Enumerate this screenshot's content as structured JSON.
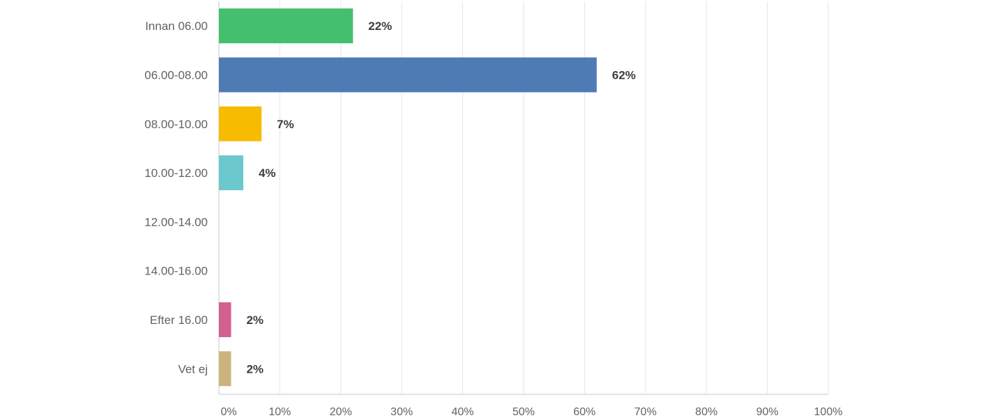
{
  "chart_data": {
    "type": "bar",
    "orientation": "horizontal",
    "categories": [
      "Innan 06.00",
      "06.00-08.00",
      "08.00-10.00",
      "10.00-12.00",
      "12.00-14.00",
      "14.00-16.00",
      "Efter 16.00",
      "Vet ej"
    ],
    "values": [
      22,
      62,
      7,
      4,
      0,
      0,
      2,
      2
    ],
    "value_labels": [
      "22%",
      "62%",
      "7%",
      "4%",
      "",
      "",
      "2%",
      "2%"
    ],
    "colors": [
      "#43bf6e",
      "#4f7bb5",
      "#f7bc00",
      "#6bc8cd",
      "#ff8b4f",
      "#7e6f9e",
      "#d25f90",
      "#cbb47c"
    ],
    "xlim": [
      0,
      100
    ],
    "xticks": [
      0,
      10,
      20,
      30,
      40,
      50,
      60,
      70,
      80,
      90,
      100
    ],
    "xtick_labels": [
      "0%",
      "10%",
      "20%",
      "30%",
      "40%",
      "50%",
      "60%",
      "70%",
      "80%",
      "90%",
      "100%"
    ],
    "grid": true,
    "title": "",
    "xlabel": "",
    "ylabel": ""
  }
}
